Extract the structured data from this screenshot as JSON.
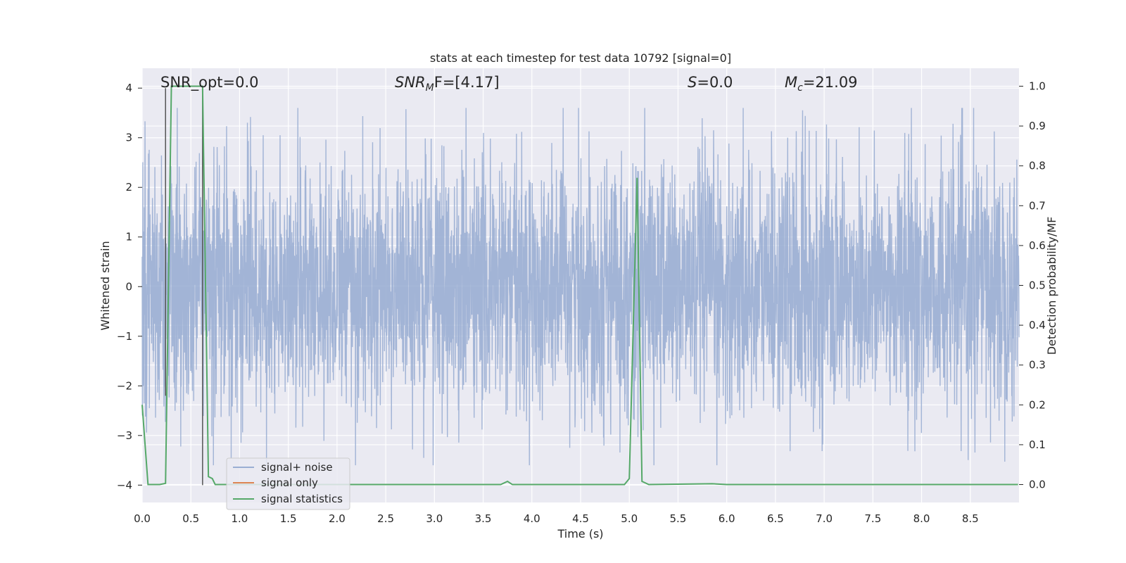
{
  "chart_data": {
    "type": "line",
    "title": "stats at each timestep for test data 10792 [signal=0]",
    "xlabel": "Time (s)",
    "ylabel_left": "Whitened strain",
    "ylabel_right": "Detection probability/MF",
    "xlim": [
      0.0,
      9.0
    ],
    "ylim_left": [
      -4.35,
      4.4
    ],
    "ylim_right": [
      -0.045,
      1.045
    ],
    "xticks": [
      "0.0",
      "0.5",
      "1.0",
      "1.5",
      "2.0",
      "2.5",
      "3.0",
      "3.5",
      "4.0",
      "4.5",
      "5.0",
      "5.5",
      "6.0",
      "6.5",
      "7.0",
      "7.5",
      "8.0",
      "8.5"
    ],
    "yticks_left": [
      "4",
      "3",
      "2",
      "1",
      "0",
      "−1",
      "−2",
      "−3",
      "−4"
    ],
    "yticks_right": [
      "1.0",
      "0.9",
      "0.8",
      "0.7",
      "0.6",
      "0.5",
      "0.4",
      "0.3",
      "0.2",
      "0.1",
      "0.0"
    ],
    "grid": true,
    "legend_position": "lower-left",
    "annotations": {
      "snr_opt": "SNR_opt=0.0",
      "snr_mf_base": "SNR",
      "snr_mf_sub": "M",
      "snr_mf_tail": "F=[4.17]",
      "s_label": "S",
      "s_tail": "=0.0",
      "mc_base": "M",
      "mc_sub": "c",
      "mc_tail": "=21.09"
    },
    "series": [
      {
        "name": "signal+ noise",
        "color": "#9aaed3",
        "axis": "left",
        "description_stats": {
          "typical_abs": 1.55,
          "max": 3.78,
          "min": -4.0
        }
      },
      {
        "name": "signal only",
        "color": "#dd8452",
        "axis": "left",
        "values": []
      },
      {
        "name": "signal statistics",
        "color": "#55a868",
        "axis": "right",
        "x": [
          0.0,
          0.06,
          0.18,
          0.24,
          0.3,
          0.62,
          0.68,
          0.72,
          0.75,
          3.68,
          3.75,
          3.8,
          4.95,
          5.0,
          5.08,
          5.13,
          5.2,
          5.85,
          6.0,
          8.99
        ],
        "y": [
          0.2,
          0.0,
          0.0,
          0.003,
          1.0,
          1.0,
          0.02,
          0.015,
          0.0,
          0.0,
          0.008,
          0.0,
          0.0,
          0.015,
          0.77,
          0.008,
          0.0,
          0.002,
          0.0,
          0.0
        ]
      }
    ],
    "vertical_markers": [
      {
        "x": 0.24,
        "y_top": 4.0,
        "y_bottom": -2.2
      },
      {
        "x": 0.62,
        "y_top": 4.0,
        "y_bottom": -4.0
      }
    ]
  },
  "colors": {
    "axes_bg": "#eaeaf2",
    "grid": "#ffffff",
    "noise": "#9aaed3",
    "signal": "#dd8452",
    "stats": "#55a868",
    "marker": "#555555"
  }
}
